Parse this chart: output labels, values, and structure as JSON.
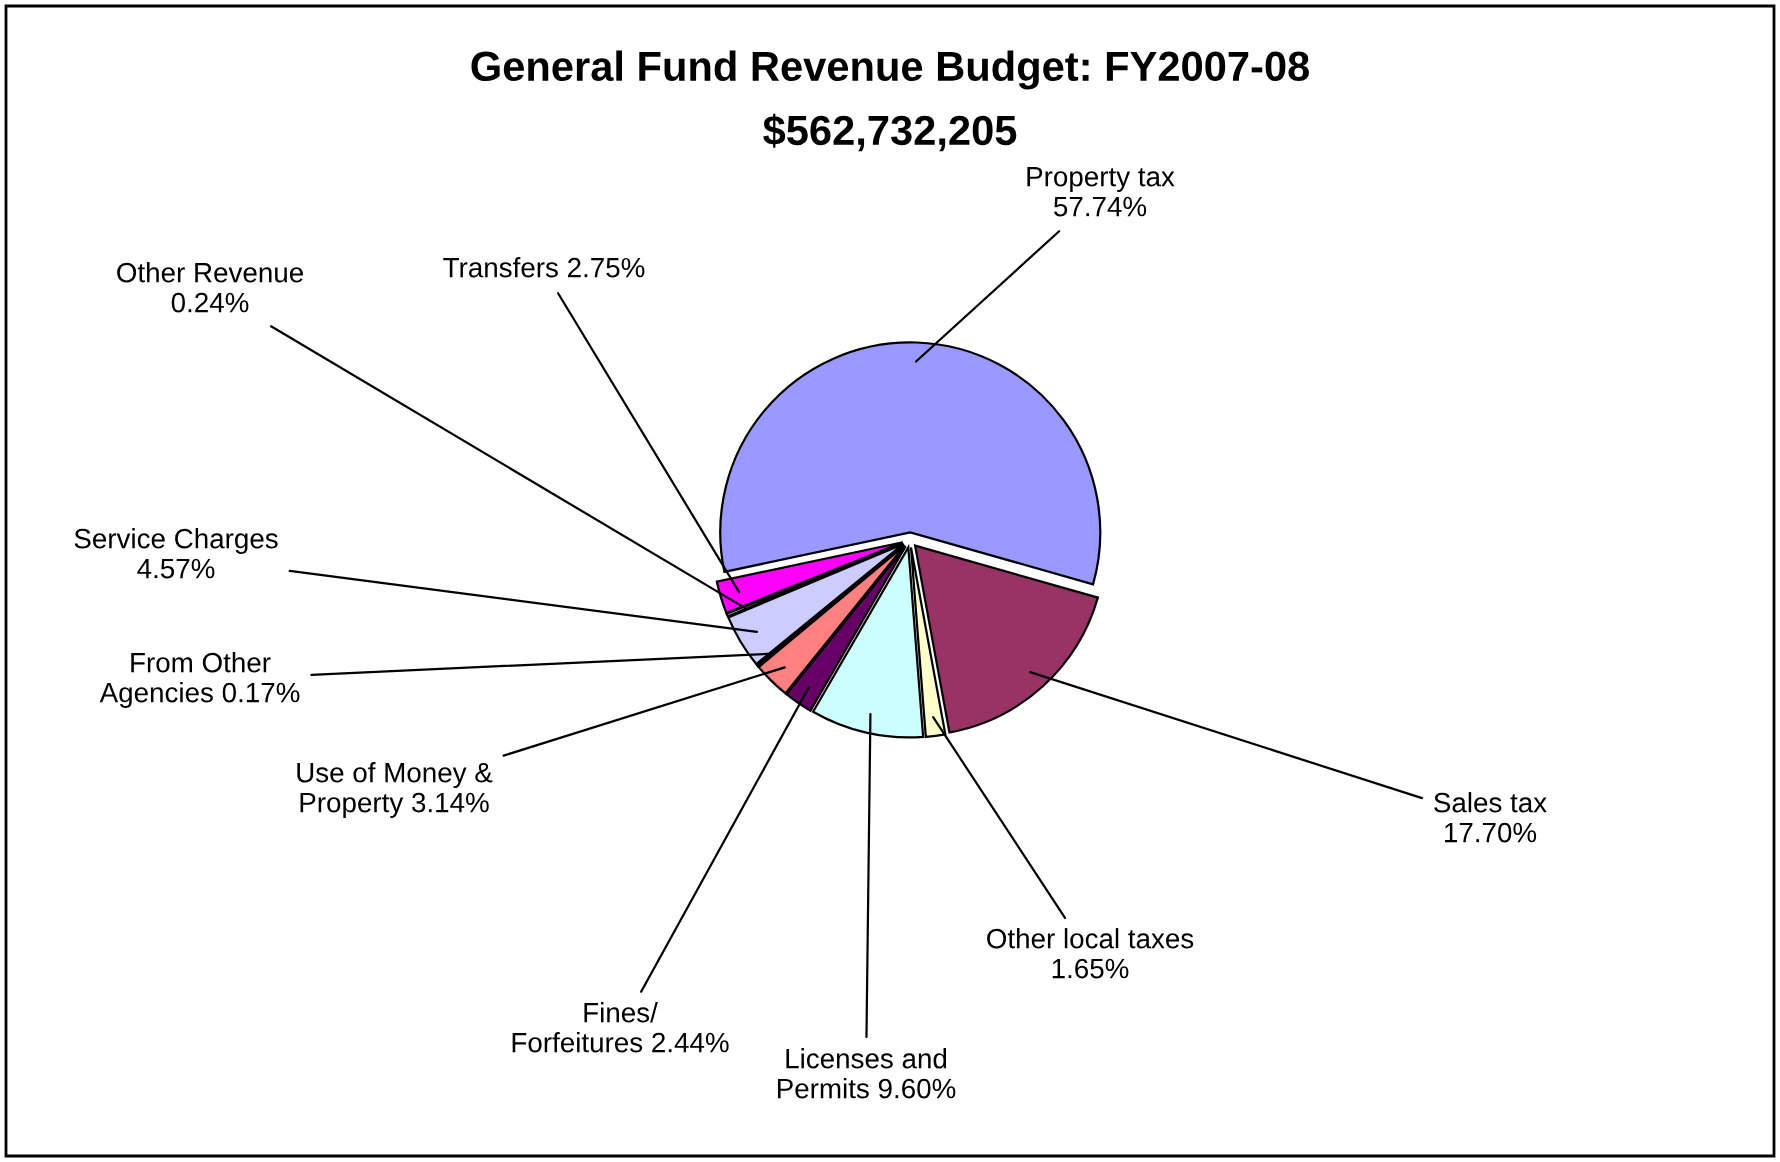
{
  "chart_data": {
    "type": "pie",
    "title": "General Fund Revenue Budget: FY2007-08",
    "subtitle": "$562,732,205",
    "categories": [
      "Property tax",
      "Sales tax",
      "Other local taxes",
      "Licenses and\nPermits",
      "Fines/\nForfeitures",
      "Use of Money &\nProperty",
      "From Other\nAgencies",
      "Service Charges",
      "Other Revenue",
      "Transfers"
    ],
    "values": [
      57.74,
      17.7,
      1.65,
      9.6,
      2.44,
      3.14,
      0.17,
      4.57,
      0.24,
      2.75
    ],
    "value_labels": [
      "57.74%",
      "17.70%",
      "1.65%",
      "9.60%",
      "2.44%",
      "3.14%",
      "0.17%",
      "4.57%",
      "0.24%",
      "2.75%"
    ],
    "colors": [
      "#9999ff",
      "#993366",
      "#ffffcc",
      "#ccffff",
      "#660066",
      "#ff8080",
      "#0066cc",
      "#ccccff",
      "#c0c0c0",
      "#ff00ff"
    ],
    "legend": false
  }
}
